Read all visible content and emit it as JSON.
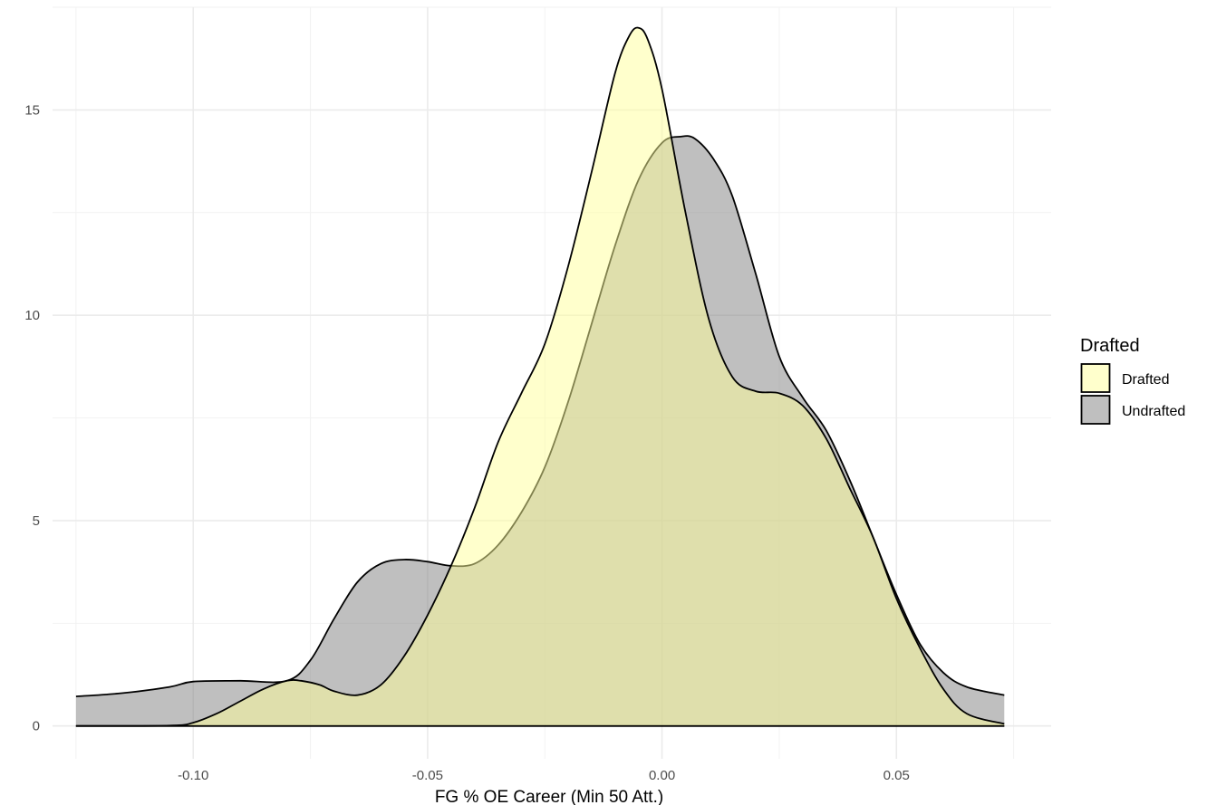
{
  "chart_data": {
    "type": "area",
    "title": "",
    "xlabel": "FG % OE Career (Min 50 Att.)",
    "ylabel": "",
    "xlim": [
      -0.13,
      0.083
    ],
    "ylim": [
      -0.8,
      17.5
    ],
    "x_ticks": [
      -0.1,
      -0.05,
      0.0,
      0.05
    ],
    "x_tick_labels": [
      "-0.10",
      "-0.05",
      "0.00",
      "0.05"
    ],
    "y_ticks": [
      0,
      5,
      10,
      15
    ],
    "y_tick_labels": [
      "0",
      "5",
      "10",
      "15"
    ],
    "grid": true,
    "legend": {
      "title": "Drafted",
      "position": "right",
      "entries": [
        "Drafted",
        "Undrafted"
      ]
    },
    "series": [
      {
        "name": "Undrafted",
        "color": "#808080",
        "alpha": 0.5,
        "x": [
          -0.125,
          -0.115,
          -0.105,
          -0.1,
          -0.09,
          -0.08,
          -0.075,
          -0.07,
          -0.065,
          -0.06,
          -0.055,
          -0.05,
          -0.045,
          -0.04,
          -0.035,
          -0.03,
          -0.025,
          -0.02,
          -0.015,
          -0.01,
          -0.005,
          0.0,
          0.004,
          0.007,
          0.011,
          0.015,
          0.02,
          0.025,
          0.03,
          0.035,
          0.04,
          0.045,
          0.05,
          0.055,
          0.06,
          0.065,
          0.073
        ],
        "y": [
          0.72,
          0.8,
          0.95,
          1.08,
          1.1,
          1.1,
          1.6,
          2.6,
          3.5,
          3.95,
          4.05,
          4.0,
          3.9,
          3.95,
          4.4,
          5.2,
          6.3,
          7.9,
          9.8,
          11.7,
          13.3,
          14.2,
          14.35,
          14.3,
          13.8,
          12.9,
          11.0,
          9.0,
          8.0,
          7.2,
          6.0,
          4.6,
          3.2,
          2.0,
          1.3,
          0.95,
          0.75
        ]
      },
      {
        "name": "Drafted",
        "color": "#ffff99",
        "alpha": 0.5,
        "x": [
          -0.125,
          -0.105,
          -0.1,
          -0.095,
          -0.09,
          -0.085,
          -0.08,
          -0.077,
          -0.073,
          -0.07,
          -0.065,
          -0.06,
          -0.055,
          -0.05,
          -0.045,
          -0.04,
          -0.035,
          -0.03,
          -0.025,
          -0.02,
          -0.015,
          -0.01,
          -0.007,
          -0.005,
          -0.003,
          0.0,
          0.005,
          0.01,
          0.015,
          0.02,
          0.025,
          0.03,
          0.035,
          0.04,
          0.045,
          0.05,
          0.055,
          0.06,
          0.065,
          0.073
        ],
        "y": [
          0.0,
          0.01,
          0.08,
          0.3,
          0.6,
          0.9,
          1.1,
          1.1,
          1.0,
          0.85,
          0.75,
          1.0,
          1.7,
          2.7,
          3.9,
          5.3,
          6.9,
          8.1,
          9.3,
          11.2,
          13.5,
          15.9,
          16.8,
          17.0,
          16.7,
          15.5,
          12.5,
          9.9,
          8.5,
          8.15,
          8.1,
          7.8,
          7.0,
          5.8,
          4.6,
          3.1,
          1.9,
          0.9,
          0.3,
          0.05
        ]
      }
    ]
  }
}
